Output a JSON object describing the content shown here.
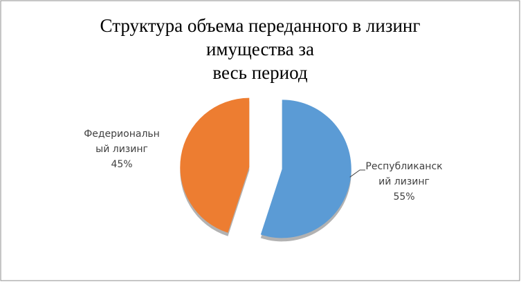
{
  "chart_data": {
    "type": "pie",
    "title": [
      "Структура объема переданного в лизинг",
      "имущества за",
      "весь период"
    ],
    "categories": [
      "Республиканский лизинг",
      "Федериональный лизинг"
    ],
    "values": [
      55,
      45
    ],
    "value_labels": [
      "55%",
      "45%"
    ],
    "colors": [
      "#5b9bd5",
      "#ed7d31"
    ]
  }
}
